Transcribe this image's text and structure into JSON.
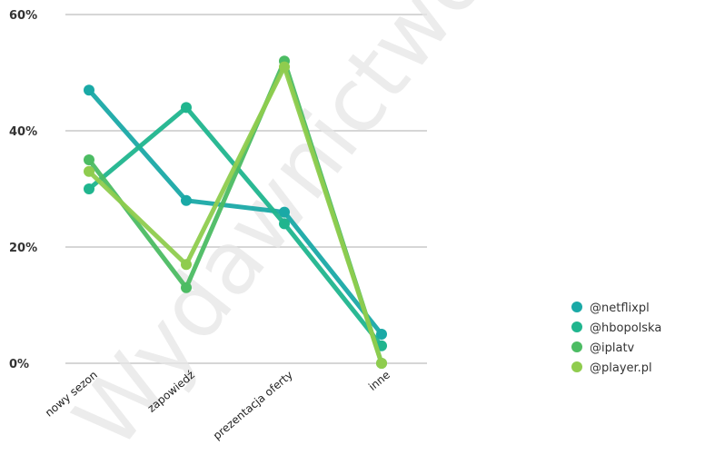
{
  "chart_data": {
    "type": "line",
    "categories": [
      "nowy sezon",
      "zapowiedź",
      "prezentacja oferty",
      "inne"
    ],
    "yticks": [
      "0%",
      "20%",
      "40%",
      "60%"
    ],
    "ylim": [
      0,
      60
    ],
    "grid": true,
    "legend_position": "right",
    "series": [
      {
        "name": "@netflixpl",
        "color": "#1aa9a6",
        "values": [
          47,
          28,
          26,
          5
        ]
      },
      {
        "name": "@hbopolska",
        "color": "#20b58e",
        "values": [
          30,
          44,
          24,
          3
        ]
      },
      {
        "name": "@iplatv",
        "color": "#4cbc63",
        "values": [
          35,
          13,
          52,
          0
        ]
      },
      {
        "name": "@player.pl",
        "color": "#8fcc4e",
        "values": [
          33,
          17,
          51,
          0
        ]
      }
    ]
  },
  "watermark": "Wydawnictwo"
}
